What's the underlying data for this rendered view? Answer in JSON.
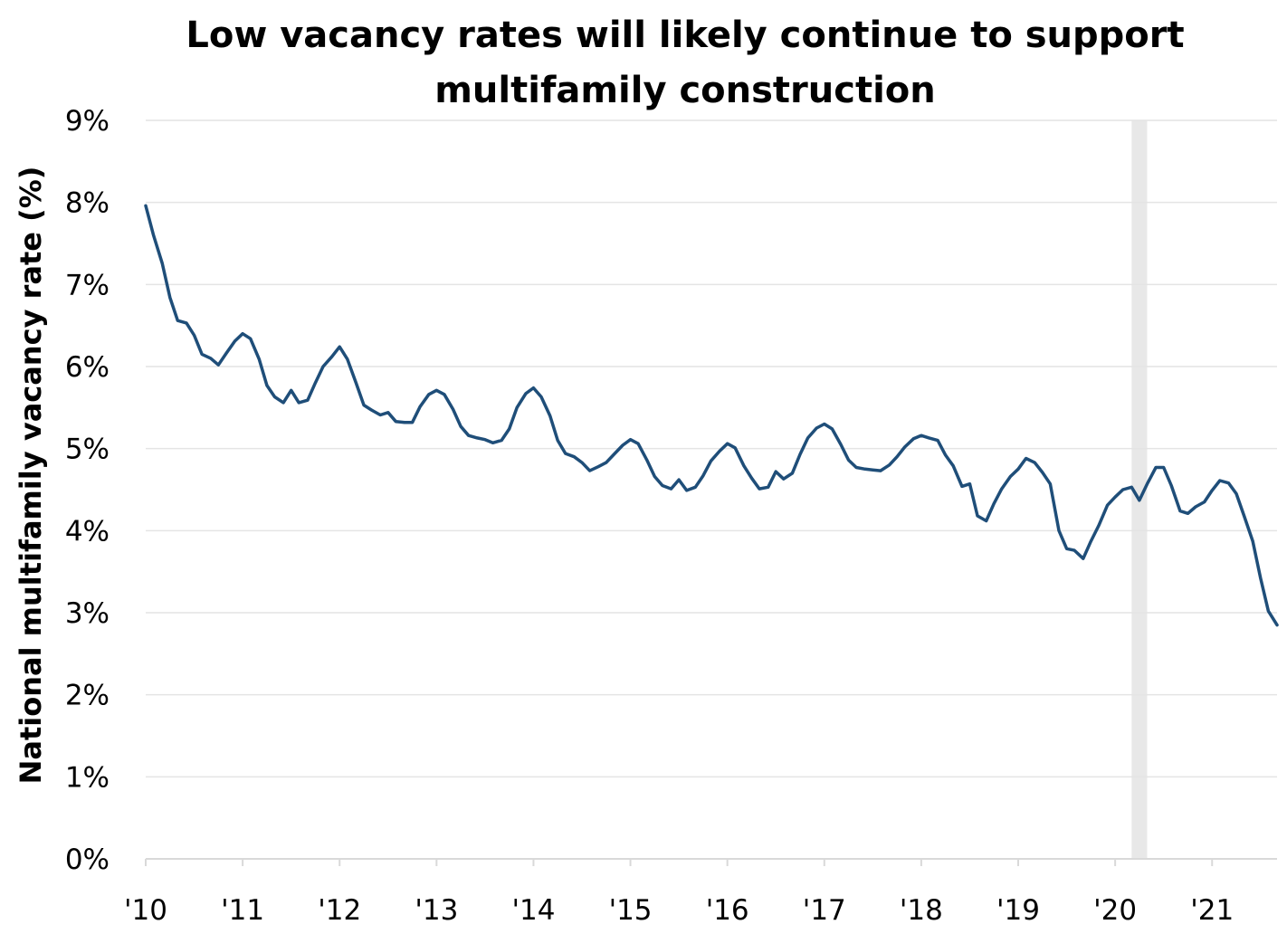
{
  "chart_data": {
    "type": "line",
    "title_lines": [
      "Low vacancy rates will likely continue to support",
      "multifamily construction"
    ],
    "ylabel": "National multifamily vacancy rate (%)",
    "xlabel": "",
    "x_tick_labels": [
      "'10",
      "'11",
      "'12",
      "'13",
      "'14",
      "'15",
      "'16",
      "'17",
      "'18",
      "'19",
      "'20",
      "'21"
    ],
    "x_tick_years": [
      2010,
      2011,
      2012,
      2013,
      2014,
      2015,
      2016,
      2017,
      2018,
      2019,
      2020,
      2021
    ],
    "y_tick_labels": [
      "0%",
      "1%",
      "2%",
      "3%",
      "4%",
      "5%",
      "6%",
      "7%",
      "8%",
      "9%"
    ],
    "y_tick_values": [
      0,
      1,
      2,
      3,
      4,
      5,
      6,
      7,
      8,
      9
    ],
    "xlim": [
      2010,
      2021.67
    ],
    "ylim": [
      0,
      9
    ],
    "grid": "horizontal",
    "shaded_period": {
      "start": 2020.17,
      "end": 2020.33
    },
    "colors": {
      "line": "#1f4e79",
      "shade": "#e8e8e8",
      "grid": "#e4e4e4"
    },
    "series": [
      {
        "values": [
          [
            2010.0,
            7.96
          ],
          [
            2010.08,
            7.6
          ],
          [
            2010.17,
            7.26
          ],
          [
            2010.25,
            6.84
          ],
          [
            2010.33,
            6.56
          ],
          [
            2010.42,
            6.53
          ],
          [
            2010.5,
            6.38
          ],
          [
            2010.58,
            6.15
          ],
          [
            2010.67,
            6.1
          ],
          [
            2010.75,
            6.02
          ],
          [
            2010.83,
            6.16
          ],
          [
            2010.92,
            6.31
          ],
          [
            2011.0,
            6.4
          ],
          [
            2011.08,
            6.34
          ],
          [
            2011.17,
            6.09
          ],
          [
            2011.25,
            5.77
          ],
          [
            2011.33,
            5.63
          ],
          [
            2011.42,
            5.56
          ],
          [
            2011.5,
            5.71
          ],
          [
            2011.58,
            5.56
          ],
          [
            2011.67,
            5.59
          ],
          [
            2011.75,
            5.8
          ],
          [
            2011.83,
            6.0
          ],
          [
            2011.92,
            6.12
          ],
          [
            2012.0,
            6.24
          ],
          [
            2012.08,
            6.09
          ],
          [
            2012.17,
            5.8
          ],
          [
            2012.25,
            5.53
          ],
          [
            2012.33,
            5.47
          ],
          [
            2012.42,
            5.41
          ],
          [
            2012.5,
            5.44
          ],
          [
            2012.58,
            5.33
          ],
          [
            2012.67,
            5.32
          ],
          [
            2012.75,
            5.32
          ],
          [
            2012.83,
            5.51
          ],
          [
            2012.92,
            5.66
          ],
          [
            2013.0,
            5.71
          ],
          [
            2013.08,
            5.66
          ],
          [
            2013.17,
            5.48
          ],
          [
            2013.25,
            5.27
          ],
          [
            2013.33,
            5.16
          ],
          [
            2013.42,
            5.13
          ],
          [
            2013.5,
            5.11
          ],
          [
            2013.58,
            5.07
          ],
          [
            2013.67,
            5.1
          ],
          [
            2013.75,
            5.24
          ],
          [
            2013.83,
            5.5
          ],
          [
            2013.92,
            5.67
          ],
          [
            2014.0,
            5.74
          ],
          [
            2014.08,
            5.63
          ],
          [
            2014.17,
            5.4
          ],
          [
            2014.25,
            5.1
          ],
          [
            2014.33,
            4.94
          ],
          [
            2014.42,
            4.9
          ],
          [
            2014.5,
            4.83
          ],
          [
            2014.58,
            4.73
          ],
          [
            2014.67,
            4.78
          ],
          [
            2014.75,
            4.83
          ],
          [
            2014.83,
            4.93
          ],
          [
            2014.92,
            5.04
          ],
          [
            2015.0,
            5.11
          ],
          [
            2015.08,
            5.06
          ],
          [
            2015.17,
            4.86
          ],
          [
            2015.25,
            4.66
          ],
          [
            2015.33,
            4.55
          ],
          [
            2015.42,
            4.51
          ],
          [
            2015.5,
            4.62
          ],
          [
            2015.58,
            4.49
          ],
          [
            2015.67,
            4.53
          ],
          [
            2015.75,
            4.67
          ],
          [
            2015.83,
            4.85
          ],
          [
            2015.92,
            4.97
          ],
          [
            2016.0,
            5.06
          ],
          [
            2016.08,
            5.01
          ],
          [
            2016.17,
            4.79
          ],
          [
            2016.25,
            4.64
          ],
          [
            2016.33,
            4.51
          ],
          [
            2016.42,
            4.53
          ],
          [
            2016.5,
            4.72
          ],
          [
            2016.58,
            4.63
          ],
          [
            2016.67,
            4.7
          ],
          [
            2016.75,
            4.93
          ],
          [
            2016.83,
            5.13
          ],
          [
            2016.92,
            5.25
          ],
          [
            2017.0,
            5.3
          ],
          [
            2017.08,
            5.24
          ],
          [
            2017.17,
            5.05
          ],
          [
            2017.25,
            4.86
          ],
          [
            2017.33,
            4.77
          ],
          [
            2017.42,
            4.75
          ],
          [
            2017.5,
            4.74
          ],
          [
            2017.58,
            4.73
          ],
          [
            2017.67,
            4.8
          ],
          [
            2017.75,
            4.9
          ],
          [
            2017.83,
            5.02
          ],
          [
            2017.92,
            5.12
          ],
          [
            2018.0,
            5.16
          ],
          [
            2018.08,
            5.13
          ],
          [
            2018.17,
            5.1
          ],
          [
            2018.25,
            4.92
          ],
          [
            2018.33,
            4.79
          ],
          [
            2018.42,
            4.54
          ],
          [
            2018.5,
            4.57
          ],
          [
            2018.58,
            4.18
          ],
          [
            2018.67,
            4.12
          ],
          [
            2018.75,
            4.33
          ],
          [
            2018.83,
            4.51
          ],
          [
            2018.92,
            4.66
          ],
          [
            2019.0,
            4.75
          ],
          [
            2019.08,
            4.88
          ],
          [
            2019.17,
            4.83
          ],
          [
            2019.25,
            4.71
          ],
          [
            2019.33,
            4.57
          ],
          [
            2019.42,
            4.0
          ],
          [
            2019.5,
            3.78
          ],
          [
            2019.58,
            3.76
          ],
          [
            2019.67,
            3.66
          ],
          [
            2019.75,
            3.87
          ],
          [
            2019.83,
            4.06
          ],
          [
            2019.92,
            4.31
          ],
          [
            2020.0,
            4.41
          ],
          [
            2020.08,
            4.5
          ],
          [
            2020.17,
            4.53
          ],
          [
            2020.25,
            4.37
          ],
          [
            2020.33,
            4.57
          ],
          [
            2020.42,
            4.77
          ],
          [
            2020.5,
            4.77
          ],
          [
            2020.58,
            4.55
          ],
          [
            2020.67,
            4.24
          ],
          [
            2020.75,
            4.21
          ],
          [
            2020.83,
            4.29
          ],
          [
            2020.92,
            4.35
          ],
          [
            2021.0,
            4.49
          ],
          [
            2021.08,
            4.61
          ],
          [
            2021.17,
            4.58
          ],
          [
            2021.25,
            4.45
          ],
          [
            2021.33,
            4.18
          ],
          [
            2021.42,
            3.87
          ],
          [
            2021.5,
            3.42
          ],
          [
            2021.58,
            3.02
          ],
          [
            2021.67,
            2.85
          ]
        ]
      }
    ]
  }
}
